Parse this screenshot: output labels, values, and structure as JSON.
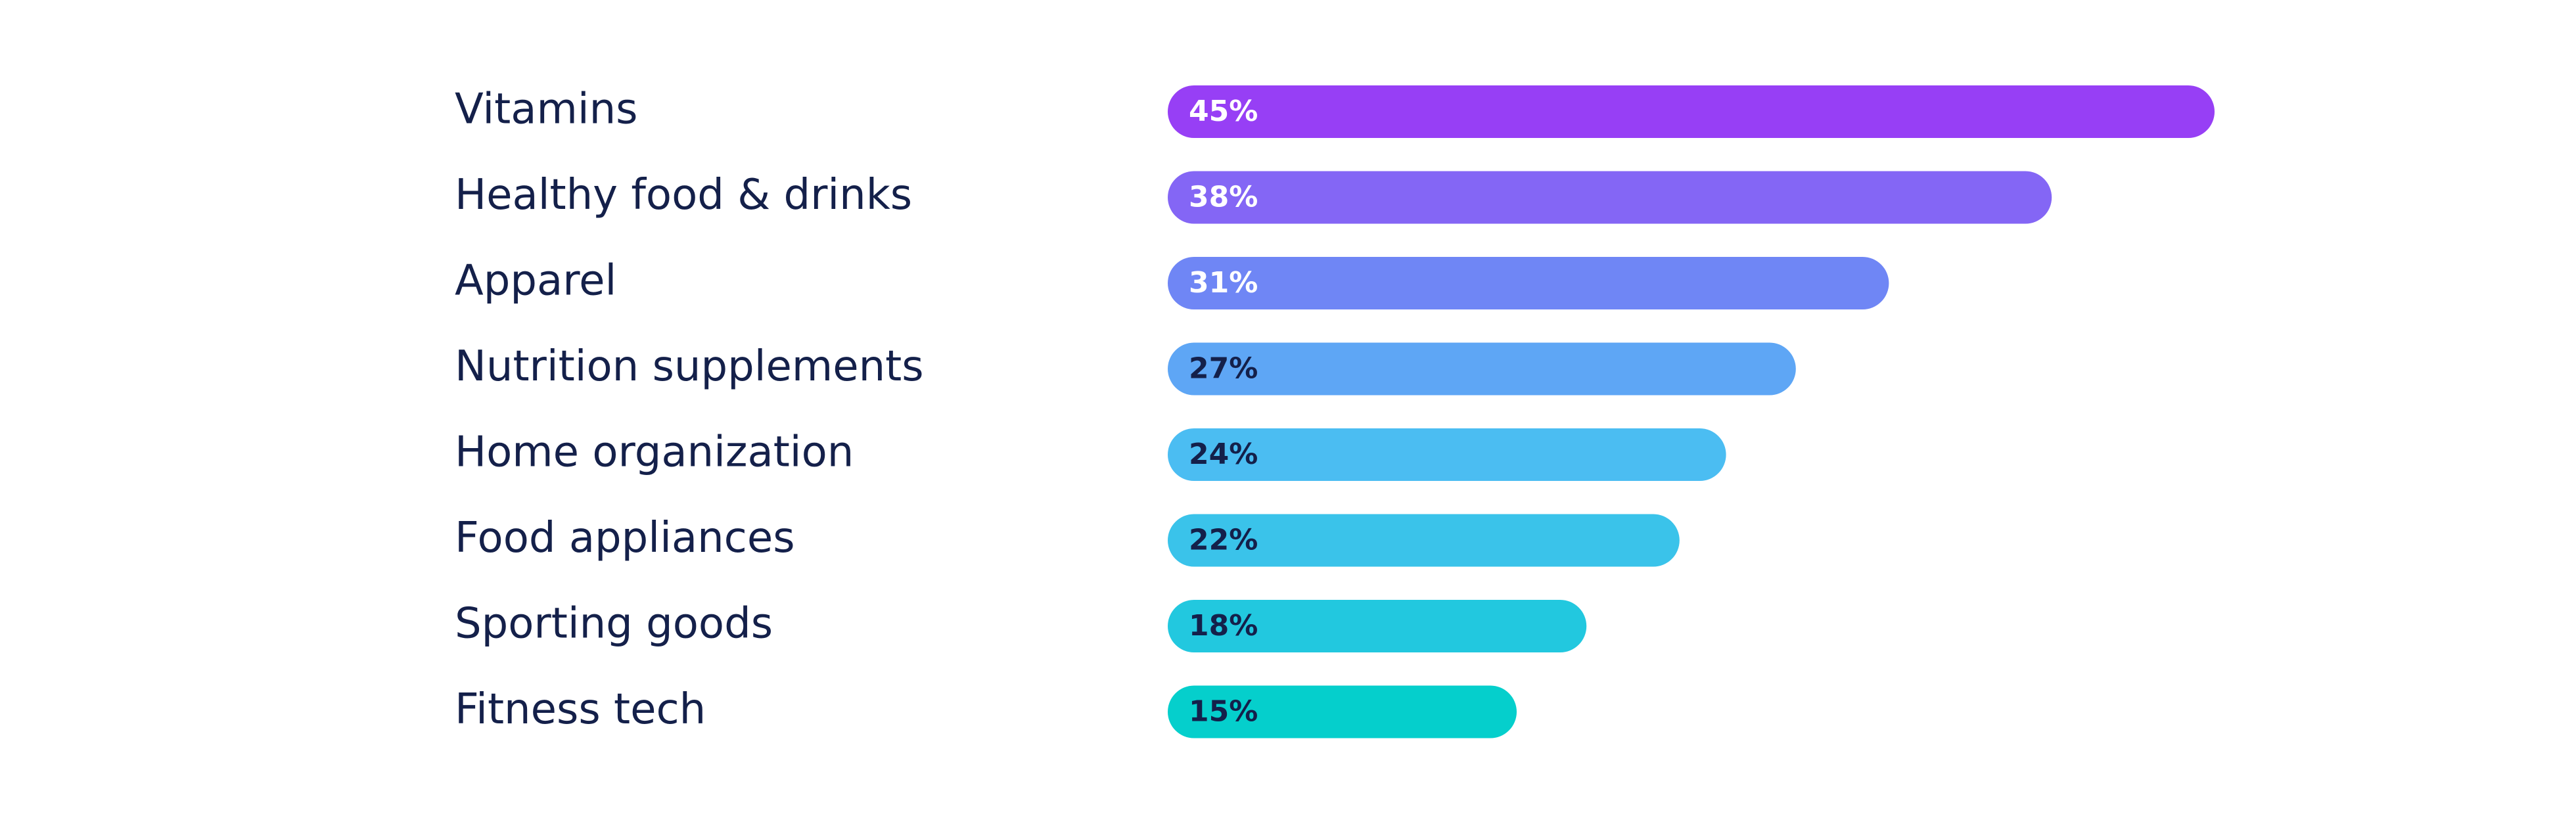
{
  "chart_data": {
    "type": "bar",
    "orientation": "horizontal",
    "categories": [
      "Vitamins",
      "Healthy food & drinks",
      "Apparel",
      "Nutrition supplements",
      "Home organization",
      "Food appliances",
      "Sporting goods",
      "Fitness tech"
    ],
    "values": [
      45,
      38,
      31,
      27,
      24,
      22,
      18,
      15
    ],
    "value_labels": [
      "45%",
      "38%",
      "31%",
      "27%",
      "24%",
      "22%",
      "18%",
      "15%"
    ],
    "bar_colors": [
      "#973ff5",
      "#8466f5",
      "#6f86f5",
      "#5ea6f5",
      "#4bbdf2",
      "#3ac3ea",
      "#22c8df",
      "#05cfcc"
    ],
    "value_label_colors": [
      "#ffffff",
      "#ffffff",
      "#ffffff",
      "#14204a",
      "#14204a",
      "#14204a",
      "#14204a",
      "#14204a"
    ],
    "category_label_color": "#14204a",
    "title": "",
    "xlabel": "",
    "ylabel": "",
    "grid": false,
    "legend": "none"
  }
}
